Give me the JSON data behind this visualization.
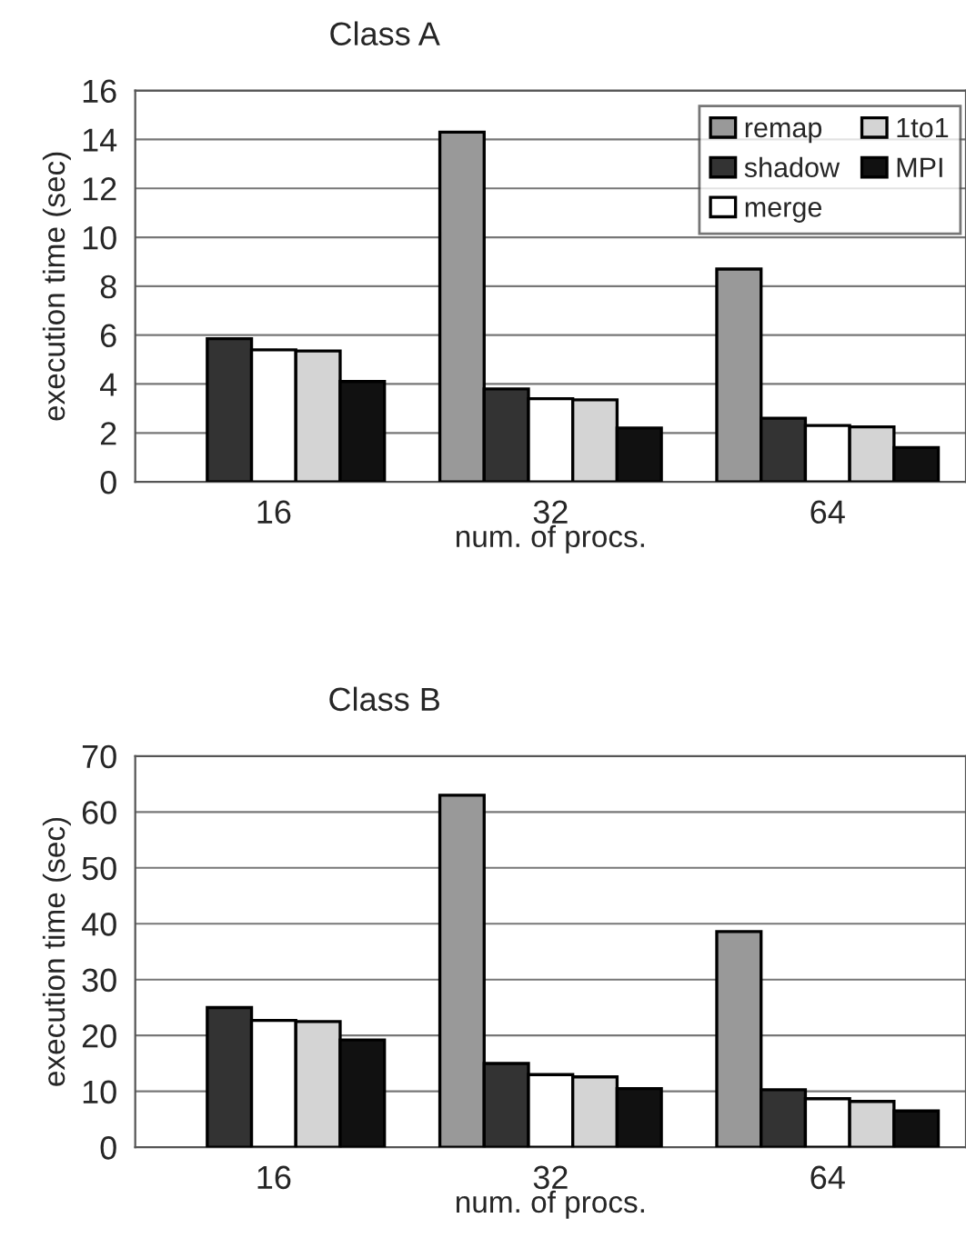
{
  "chart_data": [
    {
      "type": "bar",
      "title": "Class A",
      "xlabel": "num. of procs.",
      "ylabel": "execution time (sec)",
      "categories": [
        "16",
        "32",
        "64"
      ],
      "ylim": [
        0,
        16
      ],
      "yticks": [
        0,
        2,
        4,
        6,
        8,
        10,
        12,
        14,
        16
      ],
      "grid": "y",
      "legend": "top right",
      "series": [
        {
          "name": "remap",
          "color": "#999999",
          "values": [
            null,
            14.3,
            8.7
          ]
        },
        {
          "name": "shadow",
          "color": "#333333",
          "values": [
            5.85,
            3.8,
            2.6
          ]
        },
        {
          "name": "merge",
          "color": "#ffffff",
          "values": [
            5.4,
            3.4,
            2.3
          ]
        },
        {
          "name": "1to1",
          "color": "#d4d4d4",
          "values": [
            5.35,
            3.35,
            2.25
          ]
        },
        {
          "name": "MPI",
          "color": "#111111",
          "values": [
            4.1,
            2.2,
            1.4
          ]
        }
      ]
    },
    {
      "type": "bar",
      "title": "Class B",
      "xlabel": "num. of procs.",
      "ylabel": "execution time (sec)",
      "categories": [
        "16",
        "32",
        "64"
      ],
      "ylim": [
        0,
        70
      ],
      "yticks": [
        0,
        10,
        20,
        30,
        40,
        50,
        60,
        70
      ],
      "grid": "y",
      "series": [
        {
          "color": "#999999",
          "values": [
            null,
            63,
            38.6
          ]
        },
        {
          "color": "#333333",
          "values": [
            25,
            15,
            10.3
          ]
        },
        {
          "color": "#ffffff",
          "values": [
            22.7,
            13,
            8.7
          ]
        },
        {
          "color": "#d4d4d4",
          "values": [
            22.5,
            12.6,
            8.2
          ]
        },
        {
          "color": "#111111",
          "values": [
            19.2,
            10.5,
            6.5
          ]
        }
      ]
    }
  ]
}
